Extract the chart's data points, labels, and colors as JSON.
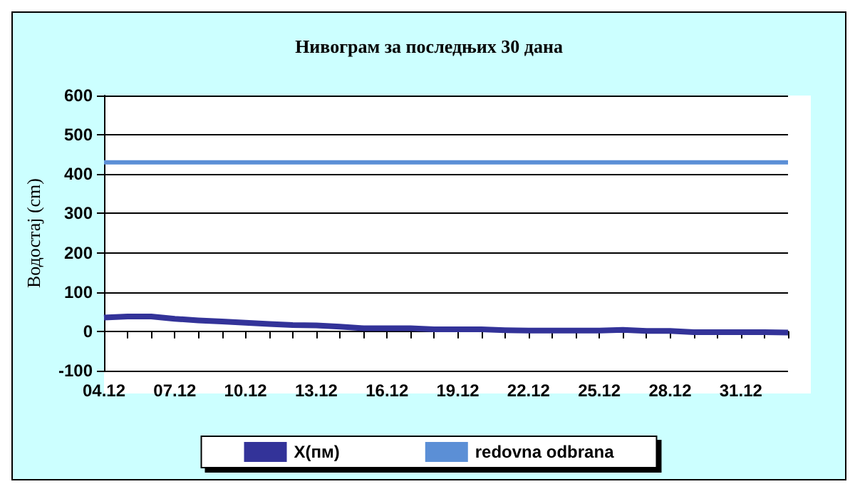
{
  "chart_data": {
    "type": "line",
    "title": "Нивограм за последњих 30 дана",
    "ylabel": "Водостај (cm)",
    "categories": [
      "04.12",
      null,
      null,
      "07.12",
      null,
      null,
      "10.12",
      null,
      null,
      "13.12",
      null,
      null,
      "16.12",
      null,
      null,
      "19.12",
      null,
      null,
      "22.12",
      null,
      null,
      "25.12",
      null,
      null,
      "28.12",
      null,
      null,
      "31.12",
      null,
      null
    ],
    "series": [
      {
        "name": "X(пм)",
        "color": "#333399",
        "values": [
          35,
          38,
          38,
          32,
          28,
          25,
          22,
          19,
          16,
          15,
          12,
          8,
          8,
          8,
          5,
          5,
          5,
          3,
          2,
          2,
          2,
          2,
          4,
          1,
          1,
          -2,
          -2,
          -2,
          -2,
          -3
        ]
      },
      {
        "name": "redovna odbrana",
        "color": "#5b8fd6",
        "values": [
          430,
          430,
          430,
          430,
          430,
          430,
          430,
          430,
          430,
          430,
          430,
          430,
          430,
          430,
          430,
          430,
          430,
          430,
          430,
          430,
          430,
          430,
          430,
          430,
          430,
          430,
          430,
          430,
          430,
          430
        ]
      }
    ],
    "ylim": [
      -100,
      600
    ],
    "yticks": [
      -100,
      0,
      100,
      200,
      300,
      400,
      500,
      600
    ],
    "grid": "y",
    "legend": "bottom",
    "marker": "none",
    "line_style": "solid"
  }
}
